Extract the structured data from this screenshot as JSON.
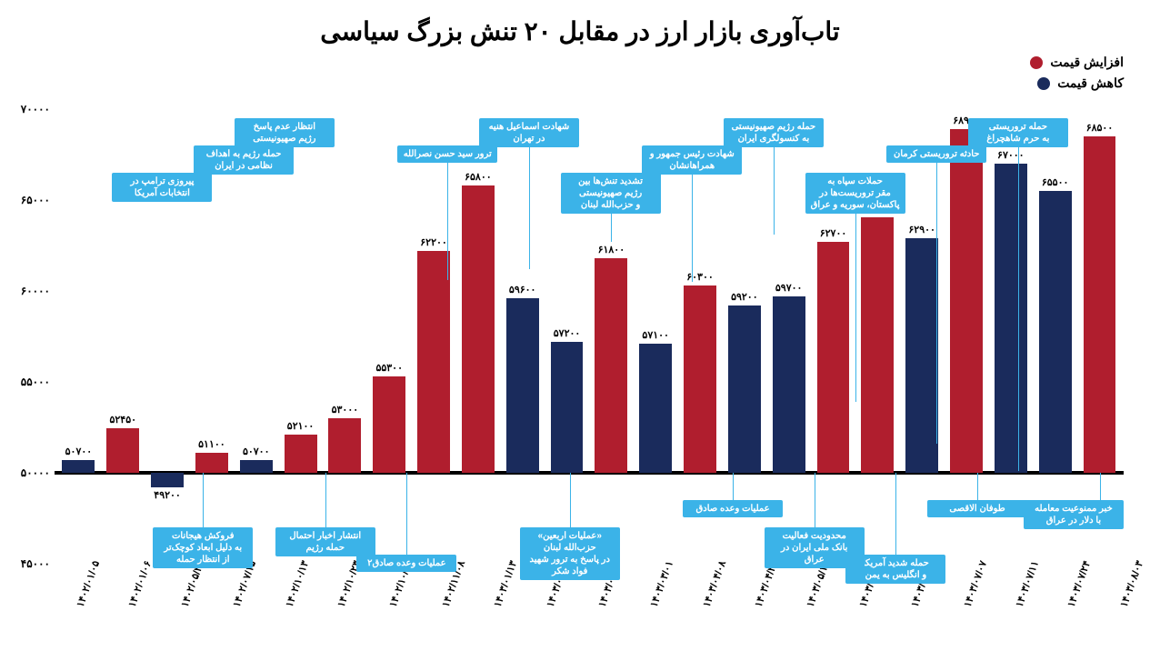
{
  "title": "تاب‌آوری بازار ارز در مقابل ۲۰ تنش بزرگ سیاسی",
  "legend": {
    "increase": {
      "label": "افزایش قیمت",
      "color": "#b01e2e"
    },
    "decrease": {
      "label": "کاهش قیمت",
      "color": "#1a2b5c"
    }
  },
  "chart": {
    "type": "bar",
    "background_color": "#ffffff",
    "baseline_value": 50000,
    "ylim": [
      45000,
      70000
    ],
    "yticks": [
      45000,
      50000,
      55000,
      60000,
      65000,
      70000
    ],
    "ytick_labels": [
      "۴۵۰۰۰",
      "۵۰۰۰۰",
      "۵۵۰۰۰",
      "۶۰۰۰۰",
      "۶۵۰۰۰",
      "۷۰۰۰۰"
    ],
    "bar_colors": {
      "up": "#b01e2e",
      "down": "#1a2b5c"
    },
    "label_fontsize": 12,
    "bars": [
      {
        "date": "۱۴۰۲/۰۱/۰۵",
        "value": 50700,
        "label": "۵۰۷۰۰",
        "dir": "up",
        "color": "#1a2b5c"
      },
      {
        "date": "۱۴۰۲/۰۱/۰۶",
        "value": 52450,
        "label": "۵۲۴۵۰",
        "dir": "up",
        "color": "#b01e2e"
      },
      {
        "date": "۱۴۰۲/۰۵/۲۳",
        "value": 49200,
        "label": "۴۹۲۰۰",
        "dir": "down",
        "color": "#1a2b5c"
      },
      {
        "date": "۱۴۰۲/۰۷/۱۵",
        "value": 51100,
        "label": "۵۱۱۰۰",
        "dir": "up",
        "color": "#b01e2e"
      },
      {
        "date": "۱۴۰۲/۱۰/۱۳",
        "value": 50700,
        "label": "۵۰۷۰۰",
        "dir": "up",
        "color": "#1a2b5c"
      },
      {
        "date": "۱۴۰۲/۱۰/۲۳",
        "value": 52100,
        "label": "۵۲۱۰۰",
        "dir": "up",
        "color": "#b01e2e"
      },
      {
        "date": "۱۴۰۲/۱۰/۲۶",
        "value": 53000,
        "label": "۵۳۰۰۰",
        "dir": "up",
        "color": "#b01e2e"
      },
      {
        "date": "۱۴۰۲/۱۱/۰۸",
        "value": 55300,
        "label": "۵۵۳۰۰",
        "dir": "up",
        "color": "#b01e2e"
      },
      {
        "date": "۱۴۰۳/۰۱/۱۳",
        "value": 62200,
        "label": "۶۲۲۰۰",
        "dir": "up",
        "color": "#b01e2e"
      },
      {
        "date": "۱۴۰۳/۰۱/۲۵",
        "value": 65800,
        "label": "۶۵۸۰۰",
        "dir": "up",
        "color": "#b01e2e"
      },
      {
        "date": "۱۴۰۳/۰۲/۳۰",
        "value": 59600,
        "label": "۵۹۶۰۰",
        "dir": "up",
        "color": "#1a2b5c"
      },
      {
        "date": "۱۴۰۳/۰۳/۰۱",
        "value": 57200,
        "label": "۵۷۲۰۰",
        "dir": "up",
        "color": "#1a2b5c"
      },
      {
        "date": "۱۴۰۳/۰۴/۰۸",
        "value": 61800,
        "label": "۶۱۸۰۰",
        "dir": "up",
        "color": "#b01e2e"
      },
      {
        "date": "۱۴۰۳/۰۴/۲۸",
        "value": 57100,
        "label": "۵۷۱۰۰",
        "dir": "up",
        "color": "#1a2b5c"
      },
      {
        "date": "۱۴۰۳/۰۵/۱۰",
        "value": 60300,
        "label": "۶۰۳۰۰",
        "dir": "up",
        "color": "#b01e2e"
      },
      {
        "date": "۱۴۰۳/۰۶/۰۸",
        "value": 59200,
        "label": "۵۹۲۰۰",
        "dir": "up",
        "color": "#1a2b5c"
      },
      {
        "date": "۱۴۰۳/۰۶/۳۰",
        "value": 59700,
        "label": "۵۹۷۰۰",
        "dir": "up",
        "color": "#1a2b5c"
      },
      {
        "date": "۱۴۰۳/۰۷/۰۷",
        "value": 62700,
        "label": "۶۲۷۰۰",
        "dir": "up",
        "color": "#b01e2e"
      },
      {
        "date": "۱۴۰۳/۰۷/۱۱",
        "value": 64050,
        "label": "۶۴۰۵۰",
        "dir": "up",
        "color": "#b01e2e"
      },
      {
        "date": "۱۴۰۳/۰۷/۲۴",
        "value": 62900,
        "label": "۶۲۹۰۰",
        "dir": "up",
        "color": "#1a2b5c"
      },
      {
        "date": "۱۴۰۳/۰۸/۰۳",
        "value": 68900,
        "label": "۶۸۹۰۰",
        "dir": "up",
        "color": "#b01e2e"
      },
      {
        "date": "۱۴۰۳/۰۸/۰۵",
        "value": 67000,
        "label": "۶۷۰۰۰",
        "dir": "up",
        "color": "#1a2b5c"
      },
      {
        "date": "۱۴۰۳/۰۸/۰۷",
        "value": 65500,
        "label": "۶۵۵۰۰",
        "dir": "up",
        "color": "#1a2b5c"
      },
      {
        "date": "۱۴۰۳/۰۸/۱۵",
        "value": 68500,
        "label": "۶۸۵۰۰",
        "dir": "up",
        "color": "#b01e2e"
      }
    ],
    "annotations": [
      {
        "bar": 0,
        "pos": "below",
        "text": "خبر ممنوعیت معامله\nبا دلار در عراق"
      },
      {
        "bar": 2,
        "pos": "above",
        "text": "حمله تروریستی\nبه حرم شاهچراغ"
      },
      {
        "bar": 3,
        "pos": "below",
        "text": "طوفان الاقصی"
      },
      {
        "bar": 4,
        "pos": "above",
        "text": "حادثه تروریستی کرمان"
      },
      {
        "bar": 5,
        "pos": "below",
        "text": "حمله شدید آمریکا\nو انگلیس به یمن"
      },
      {
        "bar": 6,
        "pos": "above",
        "text": "حملات سپاه به\nمقر تروریست‌ها در\nپاکستان، سوریه و عراق"
      },
      {
        "bar": 7,
        "pos": "below",
        "text": "محدودیت فعالیت\nبانک ملی ایران در عراق"
      },
      {
        "bar": 8,
        "pos": "above",
        "text": "حمله رژیم صهیونیستی\nبه کنسولگری ایران"
      },
      {
        "bar": 9,
        "pos": "below",
        "text": "عملیات وعده صادق"
      },
      {
        "bar": 10,
        "pos": "above",
        "text": "شهادت رئیس جمهور و همراهانشان"
      },
      {
        "bar": 12,
        "pos": "above",
        "text": "تشدید تنش‌ها بین\nرژیم صهیونیستی\nو حزب‌الله لبنان"
      },
      {
        "bar": 13,
        "pos": "below",
        "text": "«عملیات اربعین» حزب‌الله لبنان\nدر پاسخ به ترور شهید فواد شکر"
      },
      {
        "bar": 14,
        "pos": "above",
        "text": "شهادت اسماعیل هنیه در تهران"
      },
      {
        "bar": 16,
        "pos": "above",
        "text": "ترور سید حسن نصرالله"
      },
      {
        "bar": 17,
        "pos": "below",
        "text": "عملیات وعده صادق۲"
      },
      {
        "bar": 19,
        "pos": "below",
        "text": "انتشار اخبار احتمال حمله رژیم"
      },
      {
        "bar": 20,
        "pos": "above",
        "text": "انتظار عدم پاسخ\nرژیم صهیونیستی"
      },
      {
        "bar": 21,
        "pos": "above",
        "text": "حمله رژیم به اهداف نظامی در ایران"
      },
      {
        "bar": 22,
        "pos": "below",
        "text": "فروکش هیجانات\nبه دلیل ابعاد کوچک‌تر\nاز انتظار حمله"
      },
      {
        "bar": 23,
        "pos": "above",
        "text": "پیروزی ترامپ در\nانتخابات آمریکا"
      }
    ]
  }
}
